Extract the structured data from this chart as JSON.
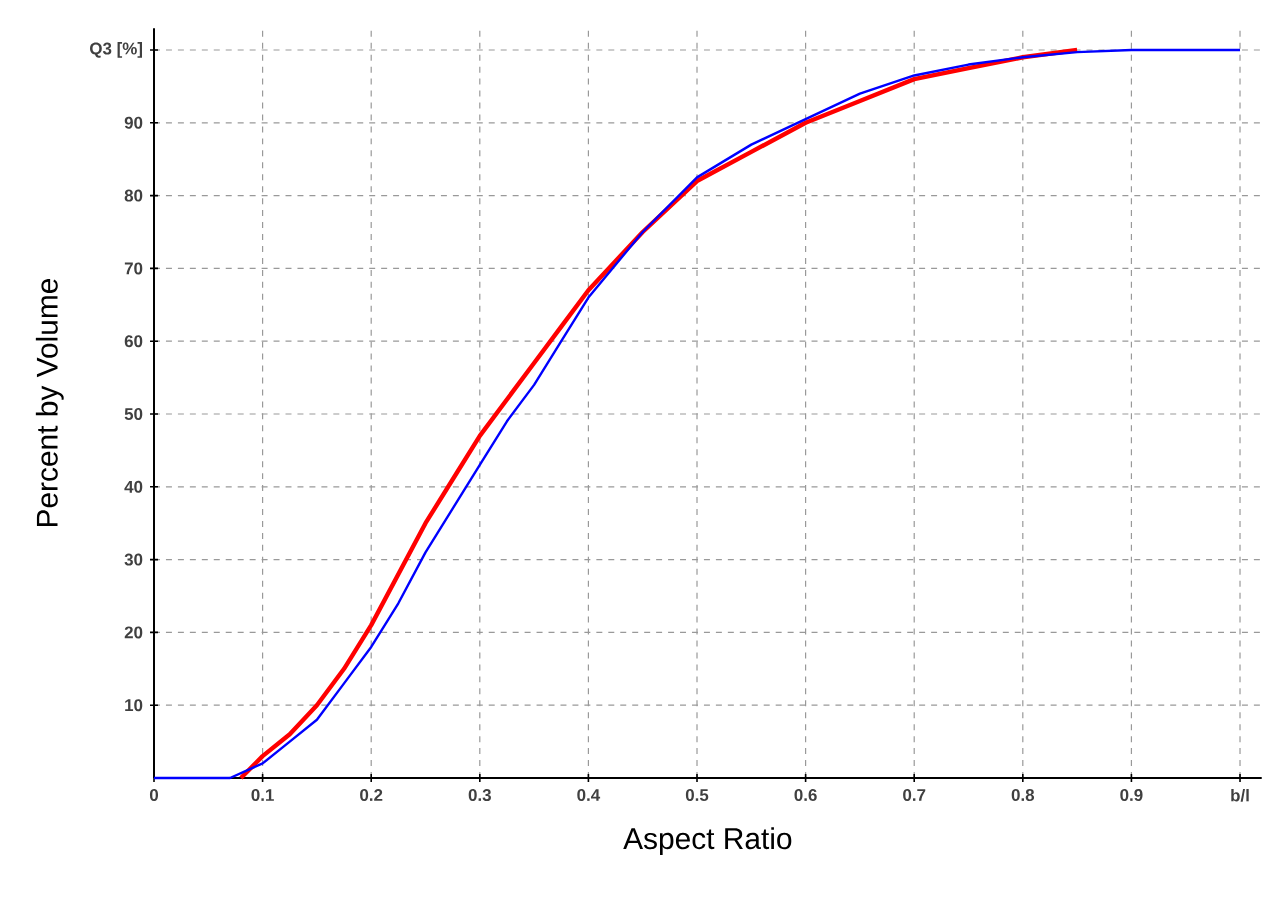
{
  "chart_data": {
    "type": "line",
    "xlabel": "Aspect Ratio",
    "ylabel": "Percent by Volume",
    "xlim": [
      0,
      1.02
    ],
    "ylim": [
      0,
      103
    ],
    "xticks": [
      0,
      0.1,
      0.2,
      0.3,
      0.4,
      0.5,
      0.6,
      0.7,
      0.8,
      0.9,
      {
        "value": 1,
        "label": "b/l"
      }
    ],
    "yticks": [
      10,
      20,
      30,
      40,
      50,
      60,
      70,
      80,
      90,
      {
        "value": 100,
        "label": "Q3 [%]"
      }
    ],
    "grid": true,
    "line_style": "solid",
    "series": [
      {
        "color": "#ff0000",
        "x": [
          0.08,
          0.1,
          0.125,
          0.15,
          0.175,
          0.2,
          0.225,
          0.25,
          0.275,
          0.3,
          0.325,
          0.35,
          0.375,
          0.4,
          0.45,
          0.5,
          0.55,
          0.6,
          0.65,
          0.7,
          0.75,
          0.8,
          0.85
        ],
        "values": [
          0,
          3,
          6,
          10,
          15,
          21,
          28,
          35,
          41,
          47,
          52,
          57,
          62,
          67,
          75,
          82,
          86,
          90,
          93,
          96,
          97.5,
          99,
          100
        ]
      },
      {
        "color": "#0000ff",
        "x": [
          0,
          0.07,
          0.1,
          0.125,
          0.15,
          0.175,
          0.2,
          0.225,
          0.25,
          0.275,
          0.3,
          0.325,
          0.35,
          0.375,
          0.4,
          0.45,
          0.5,
          0.55,
          0.6,
          0.65,
          0.7,
          0.75,
          0.8,
          0.85,
          0.9,
          1.0
        ],
        "values": [
          0,
          0,
          2,
          5,
          8,
          13,
          18,
          24,
          31,
          37,
          43,
          49,
          54,
          60,
          66,
          75,
          82.5,
          87,
          90.5,
          94,
          96.5,
          98,
          99,
          99.7,
          100,
          100
        ]
      }
    ]
  }
}
